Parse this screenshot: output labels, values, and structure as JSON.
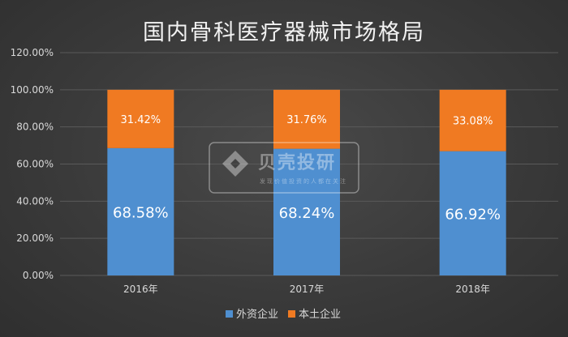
{
  "chart_data": {
    "type": "bar",
    "stacked": true,
    "title": "国内骨科医疗器械市场格局",
    "categories": [
      "2016年",
      "2017年",
      "2018年"
    ],
    "series": [
      {
        "name": "外资企业",
        "values": [
          68.58,
          68.24,
          66.92
        ],
        "labels": [
          "68.58%",
          "68.24%",
          "66.92%"
        ],
        "color": "#4f8fd0"
      },
      {
        "name": "本土企业",
        "values": [
          31.42,
          31.76,
          33.08
        ],
        "labels": [
          "31.42%",
          "31.76%",
          "33.08%"
        ],
        "color": "#f07a22"
      }
    ],
    "ylim": [
      0,
      120
    ],
    "yticks": [
      "0.00%",
      "20.00%",
      "40.00%",
      "60.00%",
      "80.00%",
      "100.00%",
      "120.00%"
    ],
    "grid": true,
    "legend_position": "bottom"
  },
  "watermark": {
    "text": "贝壳投研",
    "subtext": "发现价值投资的人都在关注",
    "icon": "shell-logo-icon"
  },
  "colors": {
    "background": "#3b3b3b",
    "gridline": "#5a5a5a",
    "text": "#d9d9d9"
  }
}
